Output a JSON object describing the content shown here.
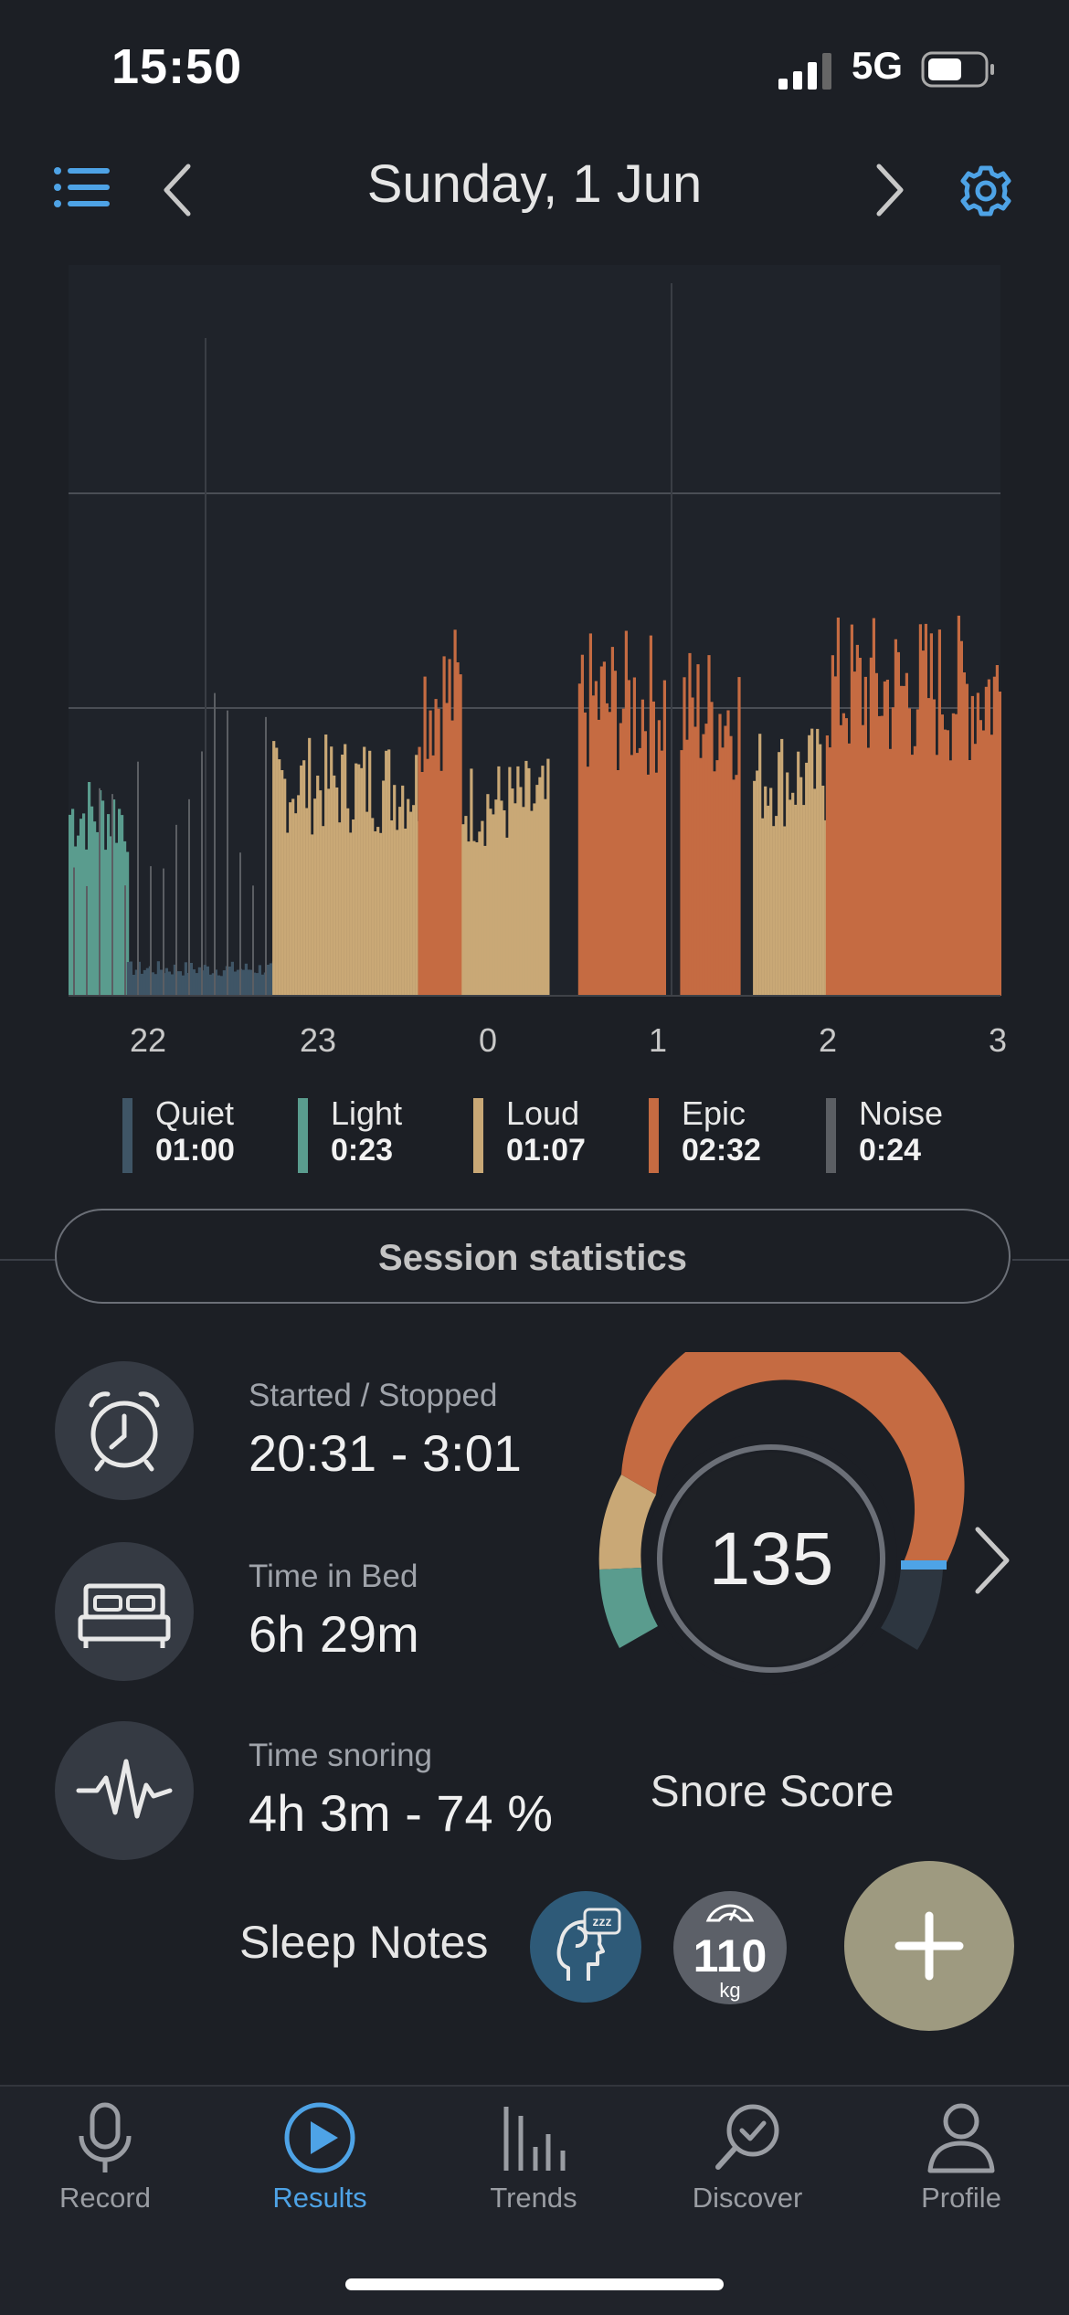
{
  "status_bar": {
    "time": "15:50",
    "network": "5G"
  },
  "header": {
    "date": "Sunday, 1 Jun"
  },
  "chart_data": {
    "type": "area",
    "x_ticks": [
      "22",
      "23",
      "0",
      "1",
      "2",
      "3"
    ],
    "series": [
      {
        "name": "Quiet",
        "color": "#3f5566"
      },
      {
        "name": "Light",
        "color": "#5a9c8e"
      },
      {
        "name": "Loud",
        "color": "#c9a876"
      },
      {
        "name": "Epic",
        "color": "#c56b42"
      },
      {
        "name": "Noise",
        "color": "#5b5e63"
      }
    ],
    "segments": [
      {
        "start": "21:40",
        "end": "22:00",
        "level": "Light",
        "peak": 0.54
      },
      {
        "start": "22:00",
        "end": "22:50",
        "level": "Quiet",
        "peak": 0.1
      },
      {
        "start": "22:50",
        "end": "23:40",
        "level": "Loud",
        "peak": 0.65
      },
      {
        "start": "23:40",
        "end": "23:55",
        "level": "Epic",
        "peak": 0.98
      },
      {
        "start": "23:55",
        "end": "00:25",
        "level": "Loud",
        "peak": 0.58
      },
      {
        "start": "00:35",
        "end": "01:05",
        "level": "Epic",
        "peak": 0.95
      },
      {
        "start": "01:10",
        "end": "01:30",
        "level": "Epic",
        "peak": 0.92
      },
      {
        "start": "01:35",
        "end": "02:00",
        "level": "Loud",
        "peak": 0.68
      },
      {
        "start": "02:00",
        "end": "03:00",
        "level": "Epic",
        "peak": 1.0
      }
    ]
  },
  "legend": [
    {
      "name": "Quiet",
      "value": "01:00",
      "color": "#3f5566"
    },
    {
      "name": "Light",
      "value": "0:23",
      "color": "#5a9c8e"
    },
    {
      "name": "Loud",
      "value": "01:07",
      "color": "#c9a876"
    },
    {
      "name": "Epic",
      "value": "02:32",
      "color": "#c56b42"
    },
    {
      "name": "Noise",
      "value": "0:24",
      "color": "#5b5e63"
    }
  ],
  "session": {
    "button_label": "Session statistics",
    "started_label": "Started / Stopped",
    "started_value": "20:31 - 3:01",
    "bed_label": "Time in Bed",
    "bed_value": "6h 29m",
    "snoring_label": "Time snoring",
    "snoring_value": "4h 3m - 74 %"
  },
  "score": {
    "value": "135",
    "label": "Snore Score"
  },
  "notes": {
    "label": "Sleep Notes",
    "weight_value": "110",
    "weight_unit": "kg"
  },
  "tabs": [
    {
      "label": "Record"
    },
    {
      "label": "Results"
    },
    {
      "label": "Trends"
    },
    {
      "label": "Discover"
    },
    {
      "label": "Profile"
    }
  ],
  "colors": {
    "accent": "#4ea3e6",
    "background": "#1c1f25"
  }
}
